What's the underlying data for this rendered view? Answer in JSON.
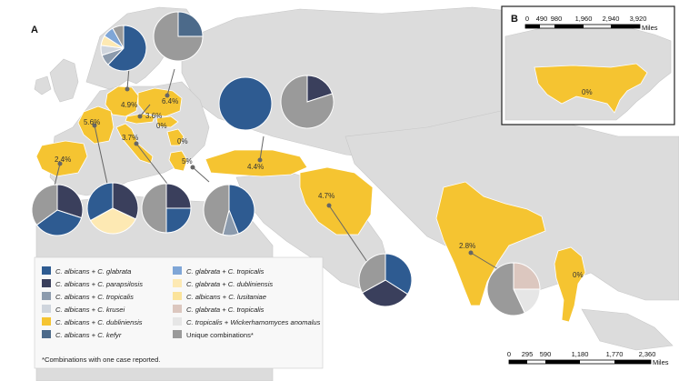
{
  "panels": {
    "a": "A",
    "b": "B"
  },
  "colors": {
    "ocean": "#ffffff",
    "land": "#dcdcdc",
    "highlight": "#f5c431",
    "border": "#bbbbbb"
  },
  "countries": [
    {
      "id": "germany",
      "value": "4.9%"
    },
    {
      "id": "poland",
      "value": "6.4%"
    },
    {
      "id": "austria",
      "value": "3.6%"
    },
    {
      "id": "hungary",
      "value": "0%"
    },
    {
      "id": "france",
      "value": "5.6%"
    },
    {
      "id": "italy",
      "value": "3.7%"
    },
    {
      "id": "spain",
      "value": "2.4%"
    },
    {
      "id": "serbia",
      "value": "0%"
    },
    {
      "id": "greece",
      "value": "5%"
    },
    {
      "id": "turkey",
      "value": "4.4%"
    },
    {
      "id": "iran",
      "value": "4.7%"
    },
    {
      "id": "india",
      "value": "2.8%"
    },
    {
      "id": "thailand",
      "value": "0%"
    },
    {
      "id": "usa",
      "value": "0%"
    }
  ],
  "pies": [
    {
      "id": "germany",
      "slices": [
        {
          "c": "#2e5b91",
          "v": 0.62
        },
        {
          "c": "#8c9bad",
          "v": 0.08
        },
        {
          "c": "#cfd5dd",
          "v": 0.07
        },
        {
          "c": "#fde9b3",
          "v": 0.07
        },
        {
          "c": "#7fa6d7",
          "v": 0.08
        },
        {
          "c": "#9a9a9a",
          "v": 0.08
        }
      ]
    },
    {
      "id": "poland",
      "slices": [
        {
          "c": "#4c6a8a",
          "v": 0.25
        },
        {
          "c": "#9a9a9a",
          "v": 0.75
        }
      ]
    },
    {
      "id": "hungary",
      "slices": [
        {
          "c": "#2e5b91",
          "v": 1.0
        }
      ]
    },
    {
      "id": "turkey",
      "slices": [
        {
          "c": "#3a3f5c",
          "v": 0.2
        },
        {
          "c": "#9a9a9a",
          "v": 0.8
        }
      ]
    },
    {
      "id": "spain",
      "slices": [
        {
          "c": "#3a3f5c",
          "v": 0.3
        },
        {
          "c": "#2e5b91",
          "v": 0.35
        },
        {
          "c": "#9a9a9a",
          "v": 0.35
        }
      ]
    },
    {
      "id": "france",
      "slices": [
        {
          "c": "#3a3f5c",
          "v": 0.32
        },
        {
          "c": "#fde9b3",
          "v": 0.35
        },
        {
          "c": "#2e5b91",
          "v": 0.33
        }
      ]
    },
    {
      "id": "italy",
      "slices": [
        {
          "c": "#3a3f5c",
          "v": 0.25
        },
        {
          "c": "#2e5b91",
          "v": 0.25
        },
        {
          "c": "#9a9a9a",
          "v": 0.5
        }
      ]
    },
    {
      "id": "greece",
      "slices": [
        {
          "c": "#2e5b91",
          "v": 0.44
        },
        {
          "c": "#8c9bad",
          "v": 0.1
        },
        {
          "c": "#9a9a9a",
          "v": 0.46
        }
      ]
    },
    {
      "id": "iran",
      "slices": [
        {
          "c": "#2e5b91",
          "v": 0.34
        },
        {
          "c": "#3a3f5c",
          "v": 0.33
        },
        {
          "c": "#9a9a9a",
          "v": 0.33
        }
      ]
    },
    {
      "id": "india",
      "slices": [
        {
          "c": "#dcc7bf",
          "v": 0.25
        },
        {
          "c": "#e6e6e6",
          "v": 0.18
        },
        {
          "c": "#9a9a9a",
          "v": 0.57
        }
      ]
    }
  ],
  "legend": {
    "left": [
      {
        "label": "C. albicans + C. glabrata",
        "color": "#2e5b91"
      },
      {
        "label": "C. albicans + C. parapsilosis",
        "color": "#3a3f5c"
      },
      {
        "label": "C. albicans + C.  tropicalis",
        "color": "#8c9bad"
      },
      {
        "label": "C. albicans + C. krusei",
        "color": "#cfd5dd"
      },
      {
        "label": "C. albicans + C. dubliniensis",
        "color": "#f5c431"
      },
      {
        "label": "C. albicans + C. kefyr",
        "color": "#4c6a8a"
      }
    ],
    "right": [
      {
        "label": "C. glabrata + C. tropicalis",
        "color": "#7fa6d7"
      },
      {
        "label": "C. glabrata + C. dubliniensis",
        "color": "#fde9b3"
      },
      {
        "label": "C. albicans + C. lusitaniae",
        "color": "#fbe39b"
      },
      {
        "label": "C. glabrata + C. tropicalis",
        "color": "#dcc7bf"
      },
      {
        "label": "C. tropicalis + Wickerhamomyces anomalus",
        "color": "#e6e6e6"
      },
      {
        "label": "Unique combinations*",
        "color": "#9a9a9a"
      }
    ],
    "footnote": "*Combinations with one case reported."
  },
  "scale_main": {
    "ticks": [
      "0",
      "295",
      "590",
      "1,180",
      "1,770",
      "2,360"
    ],
    "unit": "Miles"
  },
  "scale_inset": {
    "ticks": [
      "0",
      "490",
      "980",
      "1,960",
      "2,940",
      "3,920"
    ],
    "unit": "Miles"
  }
}
